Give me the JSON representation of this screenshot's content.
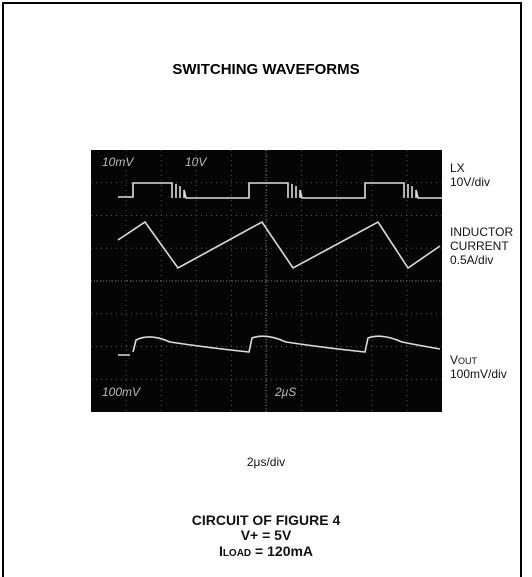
{
  "title": "SWITCHING WAVEFORMS",
  "screen": {
    "top_left": "10mV",
    "top_center": "10V",
    "bottom_left": "100mV",
    "bottom_center": "2μS"
  },
  "traces": {
    "lx": {
      "name": "LX",
      "scale": "10V/div"
    },
    "inductor": {
      "name_1": "INDUCTOR",
      "name_2": "CURRENT",
      "scale": "0.5A/div"
    },
    "vout": {
      "name": "V",
      "name_sub": "OUT",
      "scale": "100mV/div"
    }
  },
  "time_scale": "2μs/div",
  "caption": {
    "line_1": "CIRCUIT OF FIGURE 4",
    "line_2": "V+ = 5V",
    "line_3_main": "I",
    "line_3_sub": "LOAD",
    "line_3_rest": " = 120mA"
  }
}
